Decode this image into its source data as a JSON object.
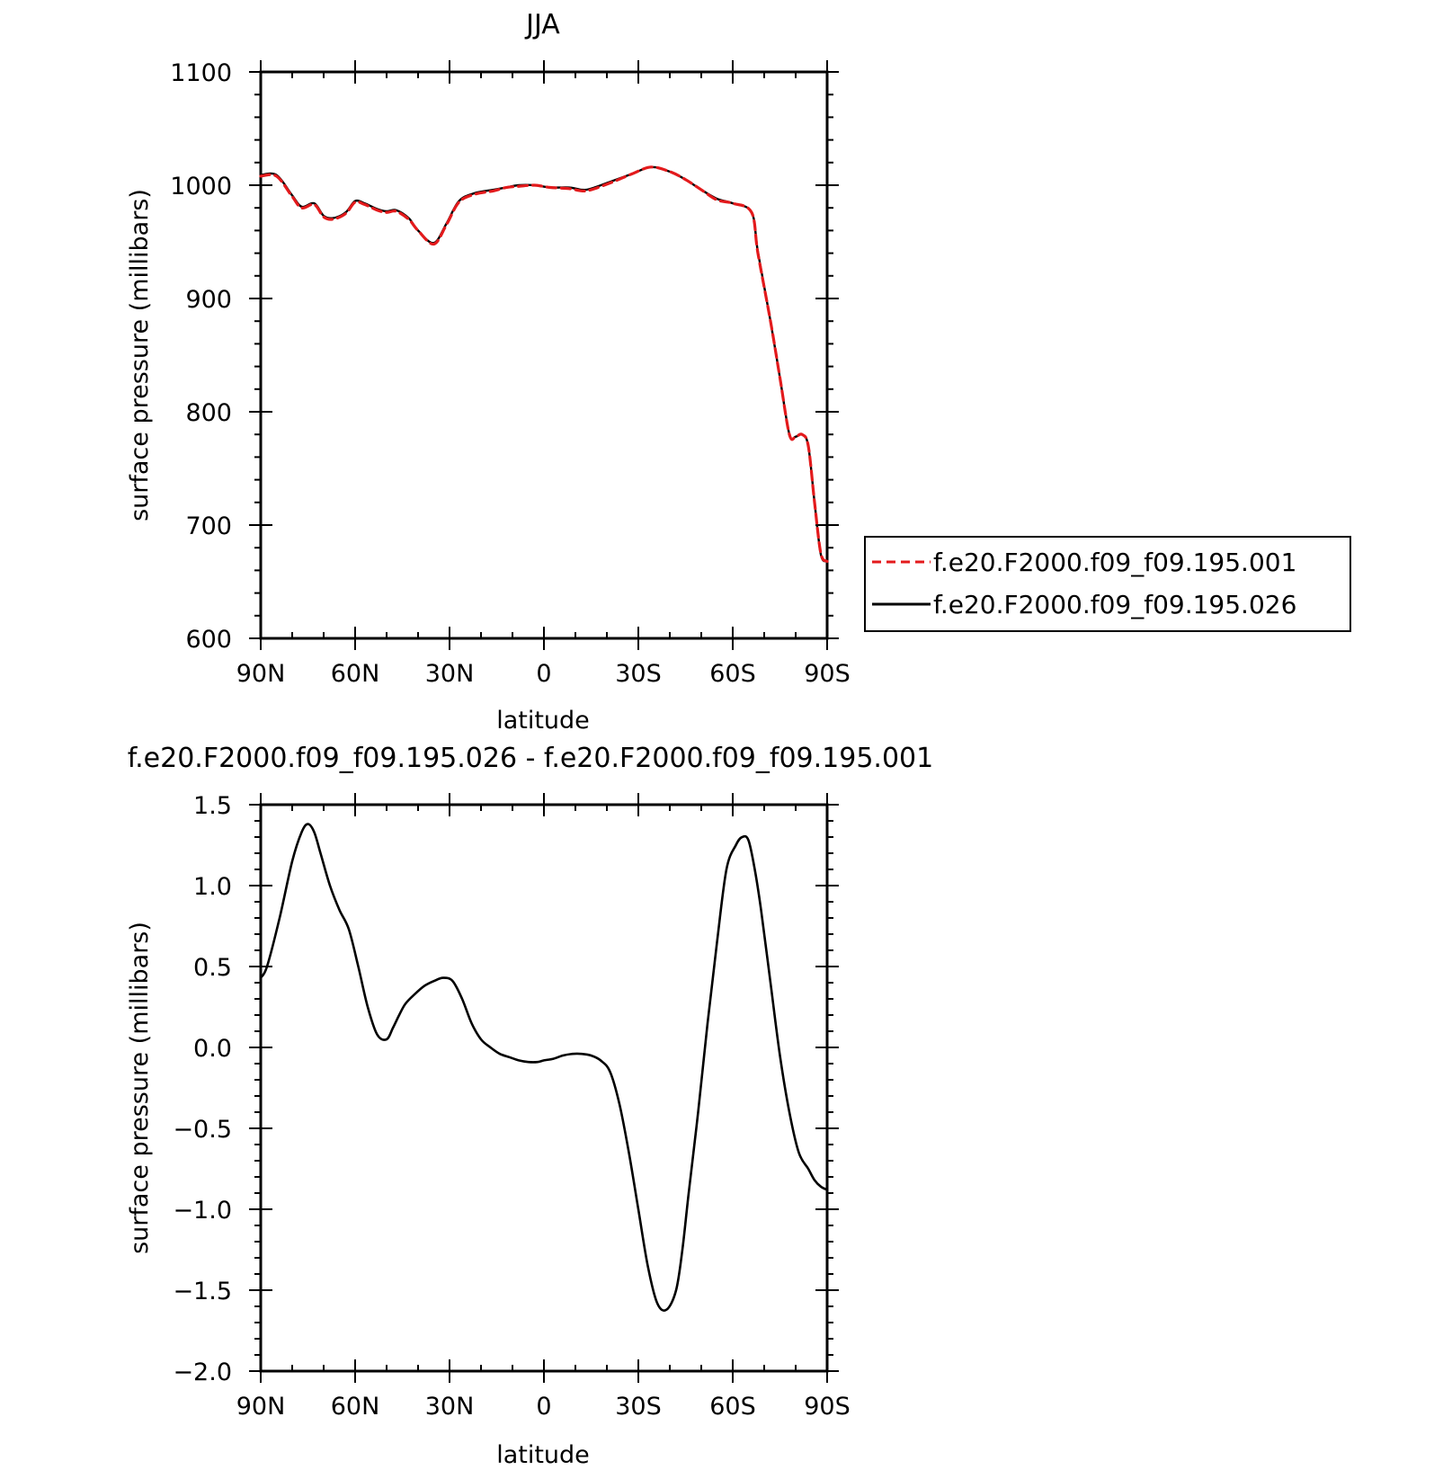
{
  "chart_data": [
    {
      "type": "line",
      "title": "JJA",
      "xlabel": "latitude",
      "ylabel": "surface pressure (millibars)",
      "xlim": [
        90,
        -90
      ],
      "ylim": [
        600,
        1100
      ],
      "x_ticks": [
        90,
        60,
        30,
        0,
        -30,
        -60,
        -90
      ],
      "x_tick_labels": [
        "90N",
        "60N",
        "30N",
        "0",
        "30S",
        "60S",
        "90S"
      ],
      "y_ticks": [
        600,
        700,
        800,
        900,
        1000,
        1100
      ],
      "y_tick_labels": [
        "600",
        "700",
        "800",
        "900",
        "1000",
        "1100"
      ],
      "legend_position": "right",
      "colors": {
        "case1": "#e31a1c",
        "case2": "#000000"
      },
      "series": [
        {
          "name": "f.e20.F2000.f09_f09.195.001",
          "style": "dashed",
          "x": [
            90,
            85,
            80,
            77,
            73,
            70,
            67,
            63,
            60,
            57,
            53,
            50,
            47,
            43,
            40,
            35,
            31,
            27,
            22,
            16,
            12,
            8,
            3,
            -2,
            -8,
            -12,
            -15,
            -22,
            -28,
            -34,
            -40,
            -45,
            -50,
            -55,
            -60,
            -66,
            -68,
            -72,
            -75,
            -78,
            -80,
            -82,
            -84,
            -86,
            -88,
            -90
          ],
          "y": [
            1008,
            1008,
            990,
            980,
            983,
            972,
            970,
            975,
            985,
            983,
            978,
            976,
            977,
            970,
            960,
            948,
            965,
            985,
            992,
            995,
            998,
            999,
            1000,
            998,
            997,
            995,
            996,
            1003,
            1010,
            1016,
            1012,
            1005,
            996,
            987,
            984,
            976,
            940,
            880,
            830,
            780,
            778,
            780,
            770,
            720,
            675,
            668
          ]
        },
        {
          "name": "f.e20.F2000.f09_f09.195.026",
          "style": "solid",
          "x": [
            90,
            85,
            80,
            77,
            73,
            70,
            67,
            63,
            60,
            57,
            53,
            50,
            47,
            43,
            40,
            35,
            31,
            27,
            22,
            16,
            12,
            8,
            3,
            -2,
            -8,
            -12,
            -15,
            -22,
            -28,
            -34,
            -40,
            -45,
            -50,
            -55,
            -60,
            -66,
            -68,
            -72,
            -75,
            -78,
            -80,
            -82,
            -84,
            -86,
            -88,
            -90
          ],
          "y": [
            1009,
            1009,
            991,
            981,
            984,
            973,
            971,
            976,
            986,
            984,
            979,
            977,
            978,
            971,
            960,
            949,
            966,
            986,
            993,
            996,
            998,
            1000,
            1000,
            998,
            998,
            996,
            997,
            1004,
            1010,
            1016,
            1012,
            1005,
            996,
            988,
            984,
            976,
            941,
            880,
            830,
            780,
            778,
            780,
            770,
            720,
            674,
            668
          ]
        }
      ]
    },
    {
      "type": "line",
      "title": "f.e20.F2000.f09_f09.195.026 - f.e20.F2000.f09_f09.195.001",
      "xlabel": "latitude",
      "ylabel": "surface pressure (millibars)",
      "xlim": [
        90,
        -90
      ],
      "ylim": [
        -2.0,
        1.5
      ],
      "x_ticks": [
        90,
        60,
        30,
        0,
        -30,
        -60,
        -90
      ],
      "x_tick_labels": [
        "90N",
        "60N",
        "30N",
        "0",
        "30S",
        "60S",
        "90S"
      ],
      "y_ticks": [
        1.5,
        1.0,
        0.5,
        0.0,
        -0.5,
        -1.0,
        -1.5,
        -2.0
      ],
      "y_tick_labels": [
        "1.5",
        "1.0",
        "0.5",
        "0.0",
        "−0.5",
        "−1.0",
        "−1.5",
        "−2.0"
      ],
      "series": [
        {
          "style": "solid",
          "x": [
            90,
            88,
            84,
            80,
            77,
            75,
            73,
            71,
            68,
            65,
            62,
            59,
            56,
            53,
            50,
            48,
            46,
            44,
            41,
            38,
            35,
            32,
            29,
            26,
            23,
            20,
            17,
            14,
            11,
            8,
            5,
            2,
            0,
            -3,
            -6,
            -9,
            -12,
            -15,
            -18,
            -21,
            -24,
            -27,
            -30,
            -33,
            -36,
            -39,
            -42,
            -44,
            -46,
            -49,
            -52,
            -55,
            -58,
            -61,
            -63,
            -65,
            -67,
            -69,
            -72,
            -75,
            -78,
            -81,
            -84,
            -86,
            -88,
            -90
          ],
          "y": [
            0.43,
            0.5,
            0.8,
            1.15,
            1.33,
            1.38,
            1.33,
            1.2,
            1.0,
            0.85,
            0.73,
            0.5,
            0.25,
            0.08,
            0.05,
            0.12,
            0.2,
            0.27,
            0.33,
            0.38,
            0.41,
            0.43,
            0.41,
            0.3,
            0.15,
            0.05,
            0.0,
            -0.04,
            -0.06,
            -0.08,
            -0.09,
            -0.09,
            -0.08,
            -0.07,
            -0.05,
            -0.04,
            -0.04,
            -0.05,
            -0.08,
            -0.15,
            -0.35,
            -0.65,
            -1.0,
            -1.35,
            -1.58,
            -1.62,
            -1.5,
            -1.25,
            -0.9,
            -0.4,
            0.15,
            0.65,
            1.1,
            1.25,
            1.3,
            1.28,
            1.1,
            0.85,
            0.4,
            -0.05,
            -0.4,
            -0.65,
            -0.75,
            -0.82,
            -0.86,
            -0.88
          ]
        }
      ]
    }
  ]
}
